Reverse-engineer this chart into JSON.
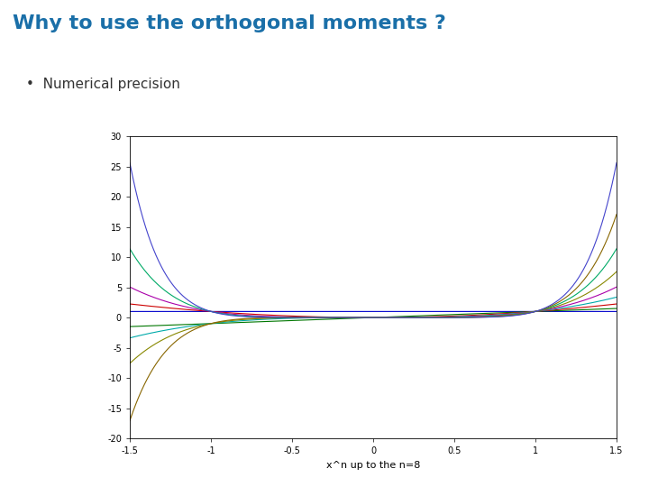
{
  "title": "Why to use the orthogonal moments ?",
  "title_color": "#1a6fa8",
  "bullet": "•  Numerical precision",
  "bullet_color": "#333333",
  "xlabel": "x^n up to the n=8",
  "xlim": [
    -1.5,
    1.5
  ],
  "ylim": [
    -20,
    30
  ],
  "yticks": [
    -20,
    -15,
    -10,
    -5,
    0,
    5,
    10,
    15,
    20,
    25,
    30
  ],
  "xticks": [
    -1.5,
    -1,
    -0.5,
    0,
    0.5,
    1,
    1.5
  ],
  "n_max": 8,
  "line_colors": [
    "#0000cc",
    "#007700",
    "#cc0000",
    "#00aaaa",
    "#aa00aa",
    "#888800",
    "#00aa66",
    "#886600",
    "#4444cc"
  ],
  "bg_color": "#ffffff",
  "plot_area_color": "#ffffff",
  "figsize": [
    7.2,
    5.4
  ],
  "dpi": 100
}
